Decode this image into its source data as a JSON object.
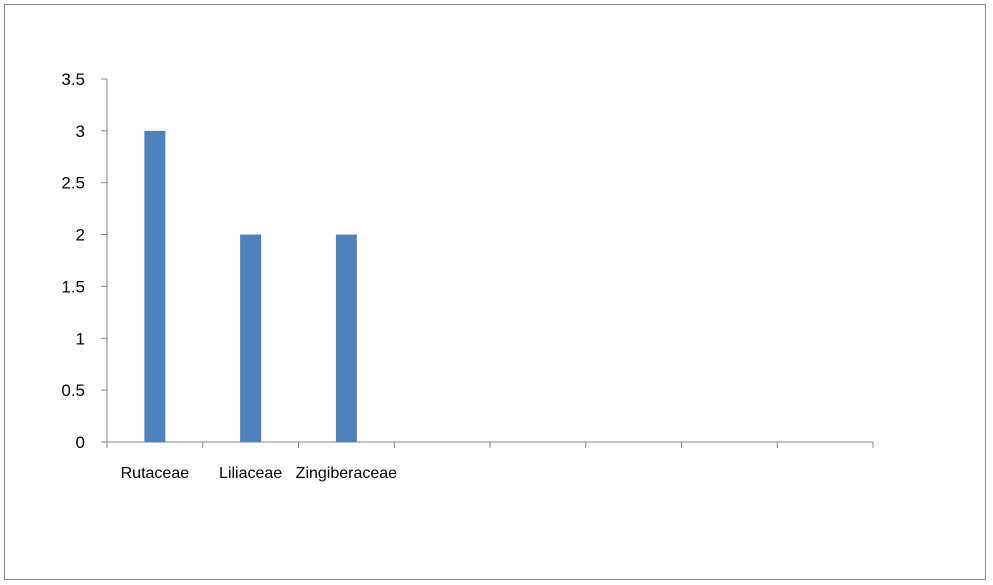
{
  "chart_data": {
    "type": "bar",
    "categories": [
      "Rutaceae",
      "Liliaceae",
      "Zingiberaceae",
      "",
      "",
      "",
      "",
      ""
    ],
    "values": [
      3,
      2,
      2,
      null,
      null,
      null,
      null,
      null
    ],
    "ylim": [
      0,
      3.5
    ],
    "yticks": [
      "0",
      "0.5",
      "1",
      "1.5",
      "2",
      "2.5",
      "3",
      "3.5"
    ],
    "title": "",
    "xlabel": "",
    "ylabel": "",
    "legend": "none",
    "grid": false,
    "bar_color": "#4F81BD",
    "axis_color": "#868686"
  }
}
